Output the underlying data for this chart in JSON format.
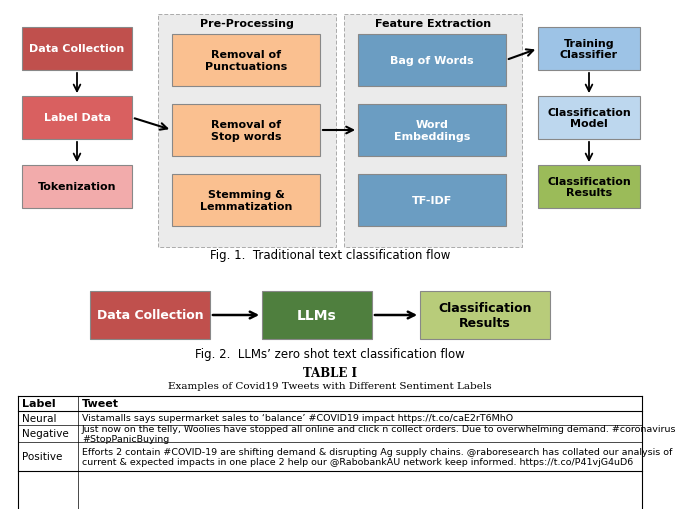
{
  "fig1_caption": "Fig. 1.  Traditional text classification flow",
  "fig2_caption": "Fig. 2.  LLMs’ zero shot text classification flow",
  "table_title1": "TABLE I",
  "table_title2": "Examples of Covid19 Tweets with Different Sentiment Labels",
  "table_headers": [
    "Label",
    "Tweet"
  ],
  "table_rows": [
    [
      "Neural",
      "Vistamalls says supermarket sales to ‘balance’ #COVID19 impact https://t.co/caE2rT6MhO"
    ],
    [
      "Negative",
      "Just now on the telly, Woolies have stopped all online and click n collect orders. Due to overwhelming demand. #coronavirus\n#StopPanicBuying"
    ],
    [
      "Positive",
      "Efforts 2 contain #COVID-19 are shifting demand & disrupting Ag supply chains. @raboresearch has collated our analysis of\ncurrent & expected impacts in one place 2 help our @RabobankAU network keep informed. https://t.co/P41vjG4uD6"
    ]
  ],
  "preprocessing_label": "Pre-Processing",
  "feature_extraction_label": "Feature Extraction",
  "left_col": [
    {
      "label": "Data Collection",
      "color": "#C0504D",
      "text_color": "white"
    },
    {
      "label": "Label Data",
      "color": "#D96060",
      "text_color": "white"
    },
    {
      "label": "Tokenization",
      "color": "#F2ABAB",
      "text_color": "black"
    }
  ],
  "pre_processing": [
    {
      "label": "Removal of\nPunctuations",
      "color": "#FAC090",
      "text_color": "black"
    },
    {
      "label": "Removal of\nStop words",
      "color": "#FAC090",
      "text_color": "black"
    },
    {
      "label": "Stemming &\nLemmatization",
      "color": "#FAC090",
      "text_color": "black"
    }
  ],
  "feature_extraction": [
    {
      "label": "Bag of Words",
      "color": "#6B9DC2",
      "text_color": "white"
    },
    {
      "label": "Word\nEmbeddings",
      "color": "#6B9DC2",
      "text_color": "white"
    },
    {
      "label": "TF-IDF",
      "color": "#6B9DC2",
      "text_color": "white"
    }
  ],
  "right_col": [
    {
      "label": "Training\nClassifier",
      "color": "#9DC3E6",
      "text_color": "black"
    },
    {
      "label": "Classification\nModel",
      "color": "#BDD7EE",
      "text_color": "black"
    },
    {
      "label": "Classification\nResults",
      "color": "#9BBB59",
      "text_color": "black"
    }
  ],
  "fig2_dc": {
    "label": "Data Collection",
    "color": "#C0504D",
    "text_color": "white"
  },
  "fig2_llm": {
    "label": "LLMs",
    "color": "#4F7F3E",
    "text_color": "white"
  },
  "fig2_cr": {
    "label": "Classification\nResults",
    "color": "#B8CC7A",
    "text_color": "black"
  }
}
